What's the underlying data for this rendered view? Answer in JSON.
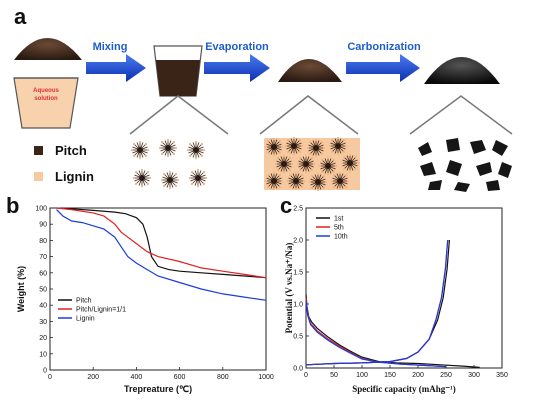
{
  "panel_a": {
    "label": "a",
    "steps": [
      "Mixing",
      "Evaporation",
      "Carbonization"
    ],
    "beaker_text": [
      "Aqueous",
      "solution"
    ],
    "legend": [
      {
        "label": "Pitch",
        "color": "#3a2418"
      },
      {
        "label": "Lignin",
        "color": "#f7c9a0"
      }
    ]
  },
  "chart_data": [
    {
      "panel": "b",
      "type": "line",
      "xlabel": "Trepreature (℃)",
      "ylabel": "Weight (%)",
      "xlim": [
        0,
        1000
      ],
      "ylim": [
        0,
        100
      ],
      "xticks": [
        0,
        200,
        400,
        600,
        800,
        1000
      ],
      "yticks": [
        0,
        10,
        20,
        30,
        40,
        50,
        60,
        70,
        80,
        90,
        100
      ],
      "legend_position": "bottom-left",
      "series": [
        {
          "name": "Pitch",
          "color": "#111111",
          "x": [
            30,
            100,
            200,
            300,
            350,
            400,
            430,
            450,
            470,
            500,
            550,
            600,
            700,
            800,
            900,
            1000
          ],
          "y": [
            100,
            99.5,
            98.5,
            97.5,
            96.5,
            94,
            90,
            82,
            70,
            64,
            62,
            61,
            60,
            59,
            58,
            57
          ]
        },
        {
          "name": "Pitch/Lignin=1/1",
          "color": "#e02020",
          "x": [
            30,
            100,
            200,
            250,
            300,
            330,
            360,
            400,
            450,
            500,
            600,
            700,
            800,
            900,
            1000
          ],
          "y": [
            100,
            99,
            97,
            95,
            90,
            85,
            82,
            78,
            73,
            70,
            67,
            63,
            61,
            59,
            57
          ]
        },
        {
          "name": "Lignin",
          "color": "#1a3ce0",
          "x": [
            30,
            60,
            100,
            150,
            200,
            250,
            300,
            330,
            360,
            400,
            450,
            500,
            600,
            700,
            800,
            900,
            1000
          ],
          "y": [
            99,
            95,
            92,
            91,
            89,
            87,
            82,
            76,
            70,
            66,
            62,
            58,
            54,
            50,
            47,
            45,
            43
          ]
        }
      ]
    },
    {
      "panel": "c",
      "type": "line",
      "xlabel": "Specific capacity (mAhg⁻¹)",
      "ylabel": "Potential (V vs.Na⁺/Na)",
      "xlim": [
        0,
        350
      ],
      "ylim": [
        0.0,
        2.5
      ],
      "xticks": [
        0,
        50,
        100,
        150,
        200,
        250,
        300,
        350
      ],
      "yticks": [
        "0.0",
        "0.5",
        "1.0",
        "1.5",
        "2.0",
        "2.5"
      ],
      "legend_position": "top-left",
      "series": [
        {
          "name": "1st",
          "color": "#111111",
          "discharge": {
            "x": [
              0,
              2,
              5,
              10,
              20,
              40,
              60,
              80,
              100,
              130,
              160,
              200,
              240,
              280,
              310
            ],
            "y": [
              1.15,
              0.95,
              0.8,
              0.72,
              0.62,
              0.48,
              0.36,
              0.26,
              0.17,
              0.1,
              0.08,
              0.07,
              0.05,
              0.03,
              0.01
            ]
          },
          "charge": {
            "x": [
              0,
              50,
              100,
              150,
              180,
              200,
              220,
              235,
              245,
              252,
              256
            ],
            "y": [
              0.05,
              0.07,
              0.08,
              0.1,
              0.15,
              0.25,
              0.45,
              0.75,
              1.1,
              1.55,
              2.0
            ]
          }
        },
        {
          "name": "5th",
          "color": "#e02020",
          "discharge": {
            "x": [
              0,
              3,
              8,
              20,
              40,
              60,
              80,
              100,
              130,
              170,
              210,
              250
            ],
            "y": [
              1.1,
              0.85,
              0.7,
              0.58,
              0.45,
              0.34,
              0.24,
              0.15,
              0.09,
              0.06,
              0.04,
              0.02
            ]
          },
          "charge": {
            "x": [
              0,
              50,
              100,
              150,
              180,
              200,
              220,
              232,
              242,
              249,
              253
            ],
            "y": [
              0.05,
              0.07,
              0.08,
              0.1,
              0.15,
              0.25,
              0.45,
              0.75,
              1.1,
              1.55,
              2.0
            ]
          }
        },
        {
          "name": "10th",
          "color": "#1a3ce0",
          "discharge": {
            "x": [
              0,
              3,
              8,
              20,
              40,
              60,
              80,
              100,
              130,
              170,
              210,
              250
            ],
            "y": [
              1.05,
              0.82,
              0.68,
              0.56,
              0.43,
              0.32,
              0.23,
              0.14,
              0.09,
              0.06,
              0.04,
              0.02
            ]
          },
          "charge": {
            "x": [
              0,
              50,
              100,
              150,
              180,
              200,
              220,
              232,
              242,
              249,
              253
            ],
            "y": [
              0.05,
              0.07,
              0.08,
              0.1,
              0.15,
              0.25,
              0.45,
              0.75,
              1.1,
              1.55,
              2.0
            ]
          }
        }
      ]
    }
  ]
}
